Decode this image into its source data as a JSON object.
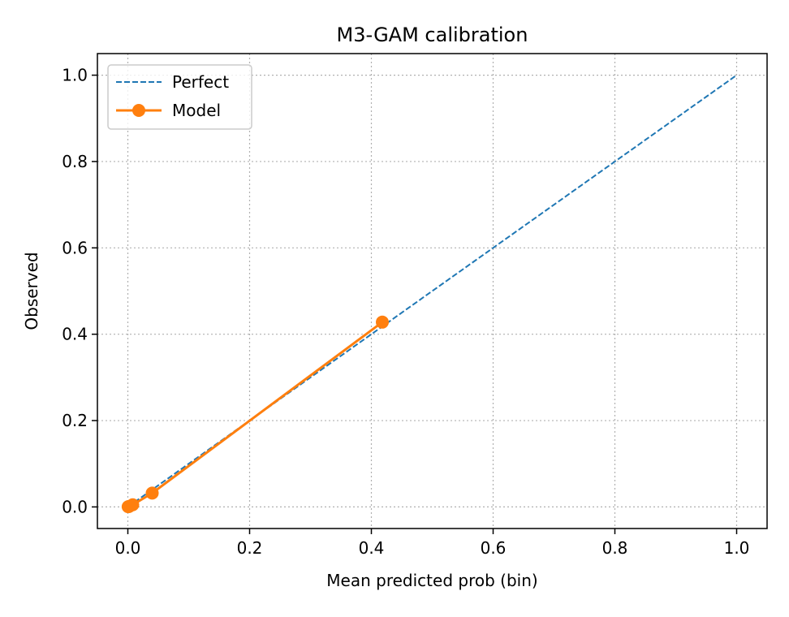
{
  "chart_data": {
    "type": "line",
    "title": "M3-GAM calibration",
    "xlabel": "Mean predicted prob (bin)",
    "ylabel": "Observed",
    "xlim": [
      -0.05,
      1.05
    ],
    "ylim": [
      -0.05,
      1.05
    ],
    "xticks": [
      0.0,
      0.2,
      0.4,
      0.6,
      0.8,
      1.0
    ],
    "yticks": [
      0.0,
      0.2,
      0.4,
      0.6,
      0.8,
      1.0
    ],
    "xtick_labels": [
      "0.0",
      "0.2",
      "0.4",
      "0.6",
      "0.8",
      "1.0"
    ],
    "ytick_labels": [
      "0.0",
      "0.2",
      "0.4",
      "0.6",
      "0.8",
      "1.0"
    ],
    "grid": true,
    "legend_position": "top-left",
    "series": [
      {
        "name": "Perfect",
        "style": "dashed",
        "markers": false,
        "color": "#1f77b4",
        "x": [
          0.0,
          1.0
        ],
        "y": [
          0.0,
          1.0
        ]
      },
      {
        "name": "Model",
        "style": "solid",
        "markers": true,
        "color": "#ff7f0e",
        "x": [
          0.0005,
          0.002,
          0.008,
          0.04,
          0.418
        ],
        "y": [
          0.0005,
          0.001,
          0.005,
          0.032,
          0.428
        ]
      }
    ]
  }
}
